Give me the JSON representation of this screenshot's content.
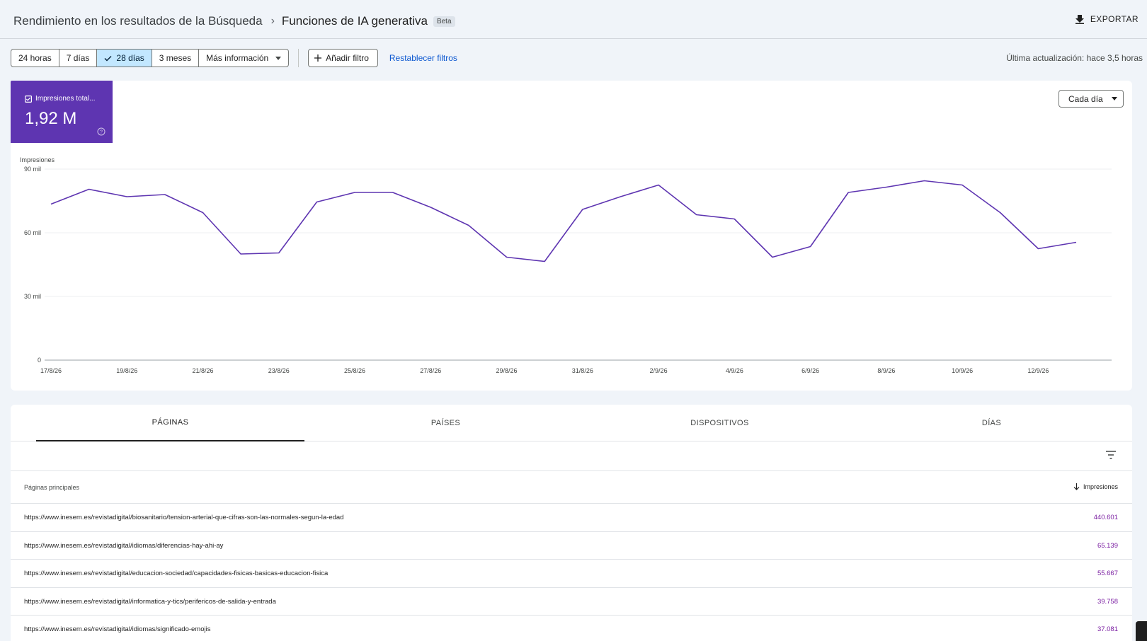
{
  "header": {
    "breadcrumb_parent": "Rendimiento en los resultados de la Búsqueda",
    "breadcrumb_separator": "›",
    "breadcrumb_current": "Funciones de IA generativa",
    "badge": "Beta",
    "export_label": "EXPORTAR",
    "export_icon": "download-icon"
  },
  "filters": {
    "ranges": [
      "24 horas",
      "7 días",
      "28 días",
      "3 meses"
    ],
    "active_range": "28 días",
    "more_label": "Más información",
    "add_filter_label": "Añadir filtro",
    "reset_label": "Restablecer filtros",
    "last_update": "Última actualización: hace 3,5 horas"
  },
  "metric": {
    "label": "Impresiones total...",
    "value": "1,92 M",
    "checked": true,
    "color": "#5e35b1"
  },
  "granularity": "Cada día",
  "chart_data": {
    "type": "line",
    "ylabel": "Impresiones",
    "ylim": [
      0,
      90000
    ],
    "y_ticks": [
      {
        "value": 0,
        "label": "0"
      },
      {
        "value": 30000,
        "label": "30 mil"
      },
      {
        "value": 60000,
        "label": "60 mil"
      },
      {
        "value": 90000,
        "label": "90 mil"
      }
    ],
    "x_tick_labels": [
      "17/8/26",
      "19/8/26",
      "21/8/26",
      "23/8/26",
      "25/8/26",
      "27/8/26",
      "29/8/26",
      "31/8/26",
      "2/9/26",
      "4/9/26",
      "6/9/26",
      "8/9/26",
      "10/9/26",
      "12/9/26"
    ],
    "x": [
      "17/8/26",
      "18/8/26",
      "19/8/26",
      "20/8/26",
      "21/8/26",
      "22/8/26",
      "23/8/26",
      "24/8/26",
      "25/8/26",
      "26/8/26",
      "27/8/26",
      "28/8/26",
      "29/8/26",
      "30/8/26",
      "31/8/26",
      "1/9/26",
      "2/9/26",
      "3/9/26",
      "4/9/26",
      "5/9/26",
      "6/9/26",
      "7/9/26",
      "8/9/26",
      "9/9/26",
      "10/9/26",
      "11/9/26",
      "12/9/26",
      "13/9/26"
    ],
    "series": [
      {
        "color": "#5e35b1",
        "values": [
          73500,
          80500,
          77000,
          78000,
          69500,
          50000,
          50500,
          74500,
          79000,
          79000,
          72000,
          63500,
          48500,
          46500,
          71000,
          77000,
          82500,
          68500,
          66500,
          48500,
          53500,
          79000,
          81500,
          84500,
          82500,
          69500,
          52500,
          55500
        ]
      }
    ],
    "grid": true,
    "legend": "none"
  },
  "tabs": [
    "PÁGINAS",
    "PAÍSES",
    "DISPOSITIVOS",
    "DÍAS"
  ],
  "active_tab": "PÁGINAS",
  "table": {
    "col_left": "Páginas principales",
    "col_right": "Impresiones",
    "sort_icon": "arrow-down-icon",
    "rows": [
      {
        "url": "https://www.inesem.es/revistadigital/biosanitario/tension-arterial-que-cifras-son-las-normales-segun-la-edad",
        "value": "440.601"
      },
      {
        "url": "https://www.inesem.es/revistadigital/idiomas/diferencias-hay-ahi-ay",
        "value": "65.139"
      },
      {
        "url": "https://www.inesem.es/revistadigital/educacion-sociedad/capacidades-fisicas-basicas-educacion-fisica",
        "value": "55.667"
      },
      {
        "url": "https://www.inesem.es/revistadigital/informatica-y-tics/perifericos-de-salida-y-entrada",
        "value": "39.758"
      },
      {
        "url": "https://www.inesem.es/revistadigital/idiomas/significado-emojis",
        "value": "37.081"
      }
    ]
  }
}
